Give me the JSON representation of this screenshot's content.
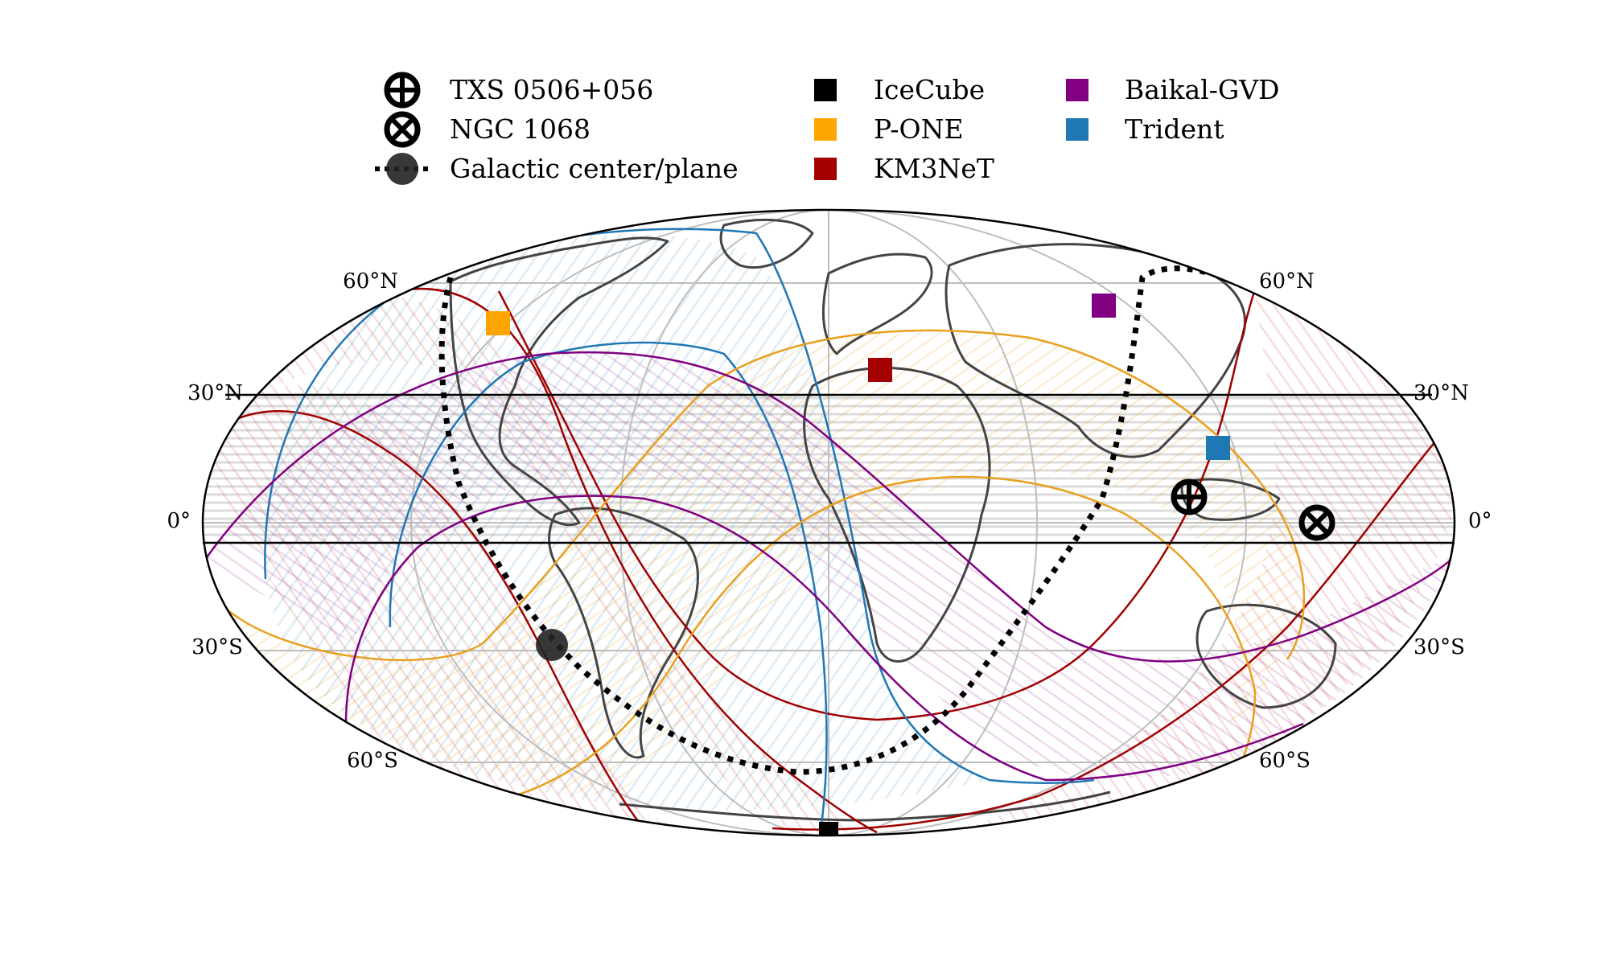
{
  "legend": {
    "sources": [
      {
        "label": "TXS 0506+056",
        "icon": "circle-plus-icon"
      },
      {
        "label": "NGC 1068",
        "icon": "circle-times-icon"
      },
      {
        "label": "Galactic center/plane",
        "icon": "dotted-line-dot-icon"
      }
    ],
    "telescopes": [
      {
        "label": "IceCube",
        "color": "#000000"
      },
      {
        "label": "P-ONE",
        "color": "#ffa500"
      },
      {
        "label": "KM3NeT",
        "color": "#a50000"
      },
      {
        "label": "Baikal-GVD",
        "color": "#800080"
      },
      {
        "label": "Trident",
        "color": "#1f77b4"
      }
    ]
  },
  "map": {
    "projection": "Mollweide",
    "graticule": true,
    "lat_labels": {
      "n60": "60°N",
      "n30": "30°N",
      "eq": "0°",
      "s30": "30°S",
      "s60": "60°S"
    },
    "galactic_plane_color": "#000000",
    "horizon_colors": {
      "icecube": "#000000",
      "pone": "#e8a020",
      "km3net": "#a00000",
      "baikal": "#800080",
      "trident": "#1f77b4"
    }
  }
}
